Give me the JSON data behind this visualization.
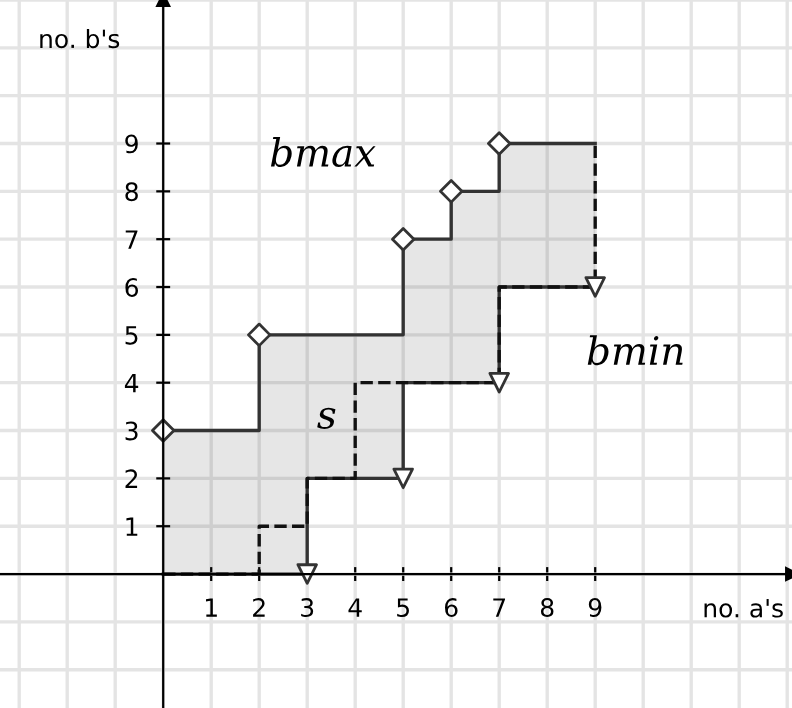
{
  "chart_data": {
    "type": "line",
    "xlabel": "no. a's",
    "ylabel": "no. b's",
    "xlim": [
      -3.4,
      13.1
    ],
    "ylim": [
      -2.8,
      12
    ],
    "xticks": [
      1,
      2,
      3,
      4,
      5,
      6,
      7,
      8,
      9
    ],
    "yticks": [
      1,
      2,
      3,
      4,
      5,
      6,
      7,
      8,
      9
    ],
    "grid": true,
    "series": [
      {
        "x": [
          0,
          2,
          2,
          3,
          3,
          5,
          5,
          6,
          6,
          7,
          7,
          9
        ],
        "values": [
          3,
          3,
          5,
          5,
          5,
          5,
          7,
          7,
          8,
          8,
          9,
          9
        ],
        "lower": [
          0,
          0,
          0,
          0,
          2,
          2,
          4,
          4,
          4,
          4,
          6,
          6
        ],
        "upper": [
          3,
          3,
          5,
          5,
          5,
          5,
          7,
          7,
          8,
          8,
          9,
          9
        ],
        "color": "#333333",
        "line_style": "solid"
      },
      {
        "x": [
          0,
          3,
          3,
          5,
          5,
          7,
          7,
          9
        ],
        "values": [
          0,
          0,
          2,
          2,
          4,
          4,
          6,
          6
        ],
        "color": "#333333",
        "line_style": "solid"
      },
      {
        "x": [
          0,
          2,
          2,
          3,
          3,
          4,
          4,
          7,
          7,
          9,
          9
        ],
        "values": [
          0,
          0,
          1,
          1,
          2,
          2,
          4,
          4,
          6,
          6,
          9
        ],
        "color": "#111111",
        "line_style": "dashed"
      },
      {
        "type": "scatter",
        "x": [
          0,
          2,
          5,
          6,
          7
        ],
        "values": [
          3,
          5,
          7,
          8,
          9
        ],
        "color": "#333333",
        "marker": "diamond"
      },
      {
        "type": "scatter",
        "x": [
          3,
          5,
          7,
          9
        ],
        "values": [
          0,
          2,
          4,
          6
        ],
        "color": "#333333",
        "marker": "triangle"
      }
    ],
    "annotations": [
      "bmax",
      "bmin",
      "s"
    ]
  }
}
